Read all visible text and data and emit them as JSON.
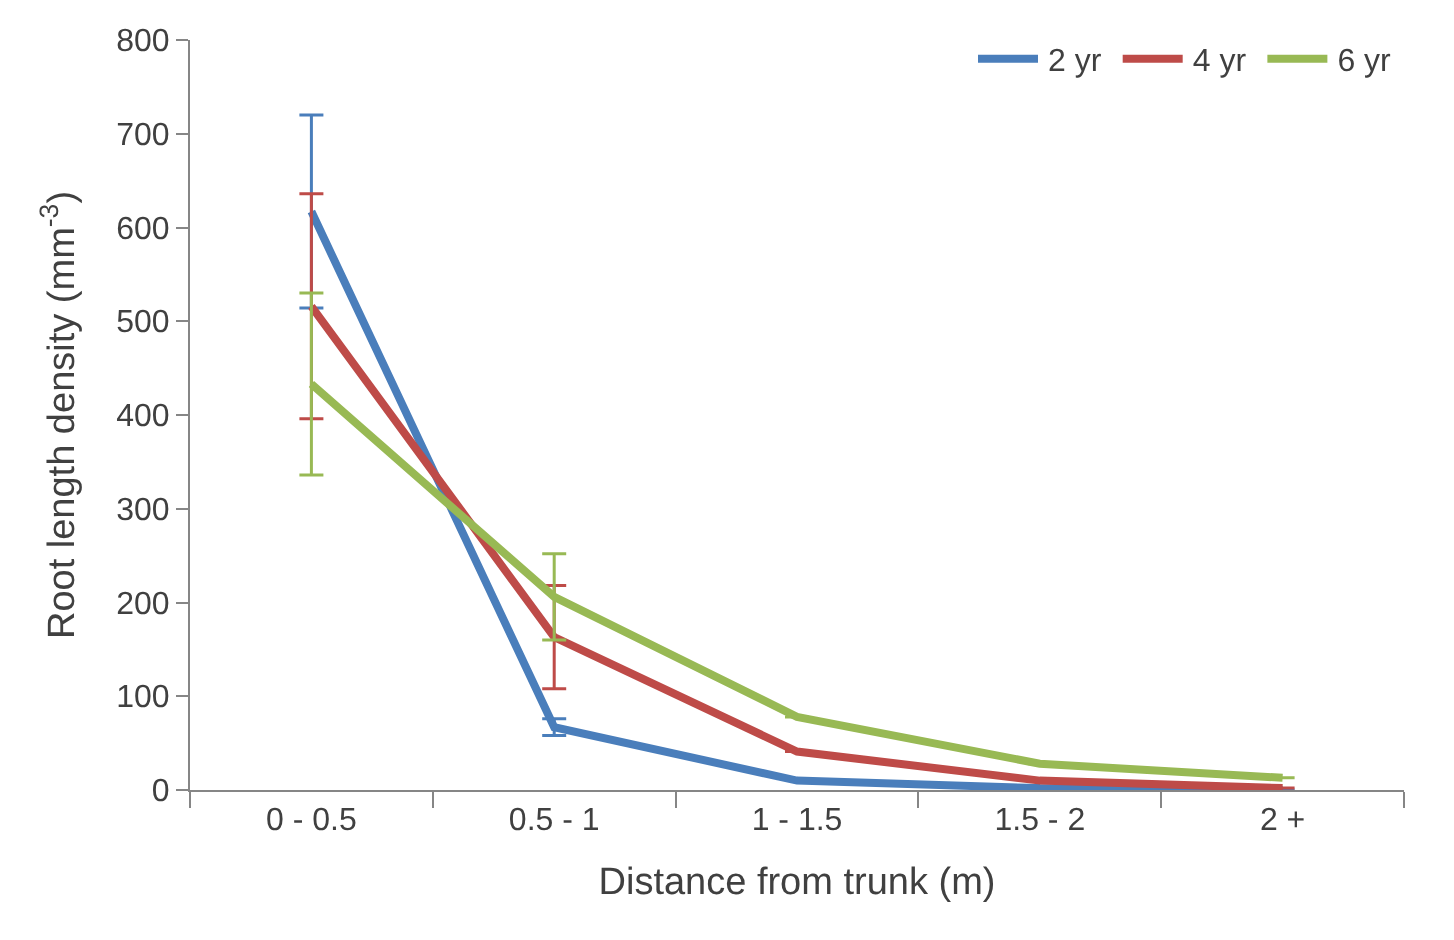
{
  "chart_data": {
    "type": "line",
    "xlabel": "Distance from trunk (m)",
    "ylabel": "Root length density (mm$^{-3}$)",
    "categories": [
      "0 - 0.5",
      "0.5 - 1",
      "1 - 1.5",
      "1.5 - 2",
      "2 +"
    ],
    "series": [
      {
        "name": "2 yr",
        "color": "#4a7ebb",
        "values": [
          617,
          67,
          10,
          2,
          0
        ],
        "errors": [
          103,
          9,
          null,
          null,
          null
        ]
      },
      {
        "name": "4 yr",
        "color": "#be4b48",
        "values": [
          516,
          163,
          41,
          10,
          2
        ],
        "errors": [
          120,
          55,
          null,
          null,
          null
        ]
      },
      {
        "name": "6 yr",
        "color": "#98b954",
        "values": [
          433,
          206,
          78,
          28,
          13
        ],
        "errors": [
          97,
          46,
          null,
          null,
          null
        ]
      }
    ],
    "ylim": [
      0,
      800
    ],
    "yticks": [
      0,
      100,
      200,
      300,
      400,
      500,
      600,
      700,
      800
    ],
    "legend": "top right",
    "marker": "none",
    "line_style": "solid"
  }
}
